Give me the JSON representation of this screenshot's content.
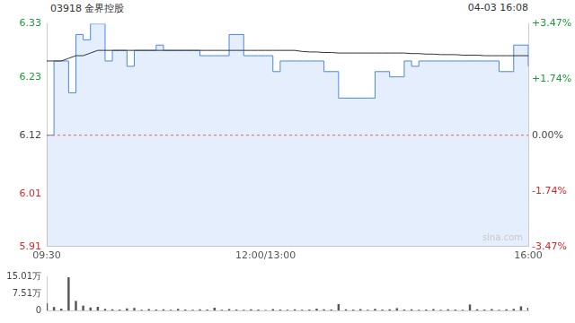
{
  "chart_data": [
    {
      "type": "line",
      "title": "03918 金界控股",
      "subtitle": "04-03 16:08",
      "annotation": "sina.com",
      "categories": [
        "09:30",
        null,
        null,
        null,
        null,
        null,
        null,
        null,
        null,
        null,
        null,
        null,
        null,
        null,
        null,
        null,
        null,
        null,
        null,
        null,
        null,
        null,
        null,
        null,
        null,
        null,
        null,
        null,
        null,
        null,
        "12:00/13:00",
        null,
        null,
        null,
        null,
        null,
        null,
        null,
        null,
        null,
        null,
        null,
        null,
        null,
        null,
        null,
        null,
        null,
        null,
        null,
        null,
        null,
        null,
        null,
        null,
        null,
        null,
        null,
        null,
        null,
        null,
        null,
        null,
        null,
        null,
        null,
        "16:00"
      ],
      "series": [
        {
          "color": "#4a86e8",
          "line_style": "stepped",
          "values": [
            6.12,
            6.26,
            6.26,
            6.2,
            6.31,
            6.3,
            6.33,
            6.33,
            6.26,
            6.28,
            6.28,
            6.25,
            6.28,
            6.28,
            6.28,
            6.29,
            6.28,
            6.28,
            6.28,
            6.28,
            6.28,
            6.27,
            6.27,
            6.27,
            6.27,
            6.31,
            6.31,
            6.27,
            6.27,
            6.27,
            6.27,
            6.24,
            6.26,
            6.26,
            6.26,
            6.26,
            6.26,
            6.26,
            6.24,
            6.24,
            6.19,
            6.19,
            6.19,
            6.19,
            6.19,
            6.24,
            6.24,
            6.23,
            6.23,
            6.26,
            6.25,
            6.26,
            6.26,
            6.26,
            6.26,
            6.26,
            6.26,
            6.26,
            6.26,
            6.26,
            6.26,
            6.26,
            6.24,
            6.24,
            6.29,
            6.29,
            6.25
          ]
        },
        {
          "color": "#333333",
          "line_style": "solid",
          "values": [
            6.26,
            6.26,
            6.26,
            6.265,
            6.27,
            6.27,
            6.275,
            6.28,
            6.28,
            6.28,
            6.28,
            6.28,
            6.28,
            6.28,
            6.28,
            6.28,
            6.28,
            6.28,
            6.28,
            6.28,
            6.28,
            6.28,
            6.28,
            6.28,
            6.28,
            6.28,
            6.28,
            6.28,
            6.28,
            6.28,
            6.28,
            6.28,
            6.28,
            6.28,
            6.28,
            6.278,
            6.277,
            6.277,
            6.276,
            6.276,
            6.275,
            6.275,
            6.275,
            6.275,
            6.275,
            6.275,
            6.275,
            6.275,
            6.275,
            6.275,
            6.274,
            6.274,
            6.273,
            6.273,
            6.272,
            6.272,
            6.272,
            6.271,
            6.271,
            6.271,
            6.27,
            6.27,
            6.27,
            6.27,
            6.27,
            6.27,
            6.27
          ]
        }
      ],
      "reference_line": 6.12,
      "ylim": [
        5.91,
        6.33
      ],
      "yticks": [
        5.91,
        6.01,
        6.12,
        6.23,
        6.33
      ],
      "y2lim": [
        -3.47,
        3.47
      ],
      "y2ticks": [
        {
          "value": -3.47,
          "label": "-3.47%"
        },
        {
          "value": -1.74,
          "label": "-1.74%"
        },
        {
          "value": 0,
          "label": "0.00%"
        },
        {
          "value": 1.74,
          "label": "+1.74%"
        },
        {
          "value": 3.47,
          "label": "+3.47%"
        }
      ],
      "grid": false
    },
    {
      "type": "bar",
      "categories": [
        "09:30",
        null,
        null,
        null,
        null,
        null,
        null,
        null,
        null,
        null,
        null,
        null,
        null,
        null,
        null,
        null,
        null,
        null,
        null,
        null,
        null,
        null,
        null,
        null,
        null,
        null,
        null,
        null,
        null,
        null,
        "12:00/13:00",
        null,
        null,
        null,
        null,
        null,
        null,
        null,
        null,
        null,
        null,
        null,
        null,
        null,
        null,
        null,
        null,
        null,
        null,
        null,
        null,
        null,
        null,
        null,
        null,
        null,
        null,
        null,
        null,
        null,
        null,
        null,
        null,
        null,
        null,
        null,
        "16:00"
      ],
      "values": [
        3.2,
        1.5,
        0.8,
        14.6,
        4.2,
        2.1,
        1.3,
        1.6,
        0.7,
        0.5,
        0.4,
        0.9,
        1.1,
        0.3,
        0.6,
        0.4,
        0.5,
        0.3,
        0.7,
        0.4,
        0.3,
        0.5,
        0.4,
        1.2,
        0.3,
        0.6,
        0.4,
        0.3,
        0.5,
        0.4,
        0.2,
        0.6,
        0.4,
        0.3,
        0.5,
        0.3,
        0.4,
        0.8,
        0.5,
        0.4,
        2.8,
        0.5,
        0.4,
        0.6,
        0.3,
        0.7,
        0.4,
        0.5,
        1.0,
        0.4,
        0.5,
        0.3,
        0.4,
        0.6,
        0.3,
        0.5,
        0.4,
        0.3,
        2.6,
        0.5,
        0.4,
        0.6,
        0.3,
        0.5,
        0.7,
        1.8,
        1.2
      ],
      "color": "#555555",
      "ylim": [
        0,
        15.01
      ],
      "yticks": [
        0,
        {
          "value": 7.51,
          "label": "7.51万"
        },
        {
          "value": 15.01,
          "label": "15.01万"
        }
      ],
      "tick_labels": "y",
      "grid": false
    }
  ]
}
